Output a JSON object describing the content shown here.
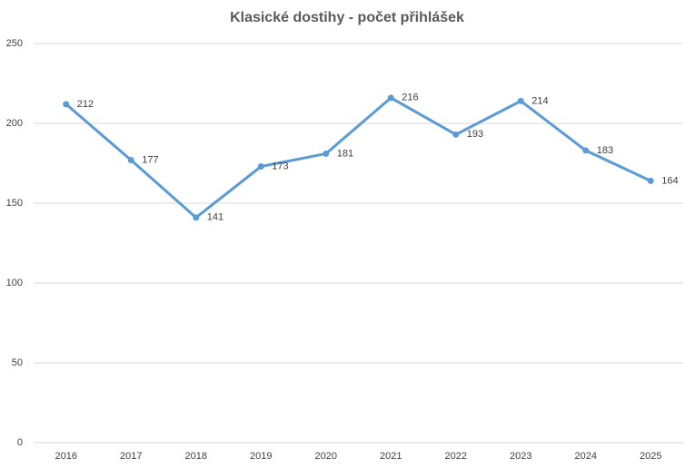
{
  "chart_data": {
    "type": "line",
    "title": "Klasické dostihy - počet přihlášek",
    "categories": [
      "2016",
      "2017",
      "2018",
      "2019",
      "2020",
      "2021",
      "2022",
      "2023",
      "2024",
      "2025"
    ],
    "series": [
      {
        "name": "Počet přihlášek",
        "color": "#5b9bd5",
        "values": [
          212,
          177,
          141,
          173,
          181,
          216,
          193,
          214,
          183,
          164
        ]
      }
    ],
    "ylim": [
      0,
      250
    ],
    "yticks": [
      0,
      50,
      100,
      150,
      200,
      250
    ],
    "grid": true
  }
}
